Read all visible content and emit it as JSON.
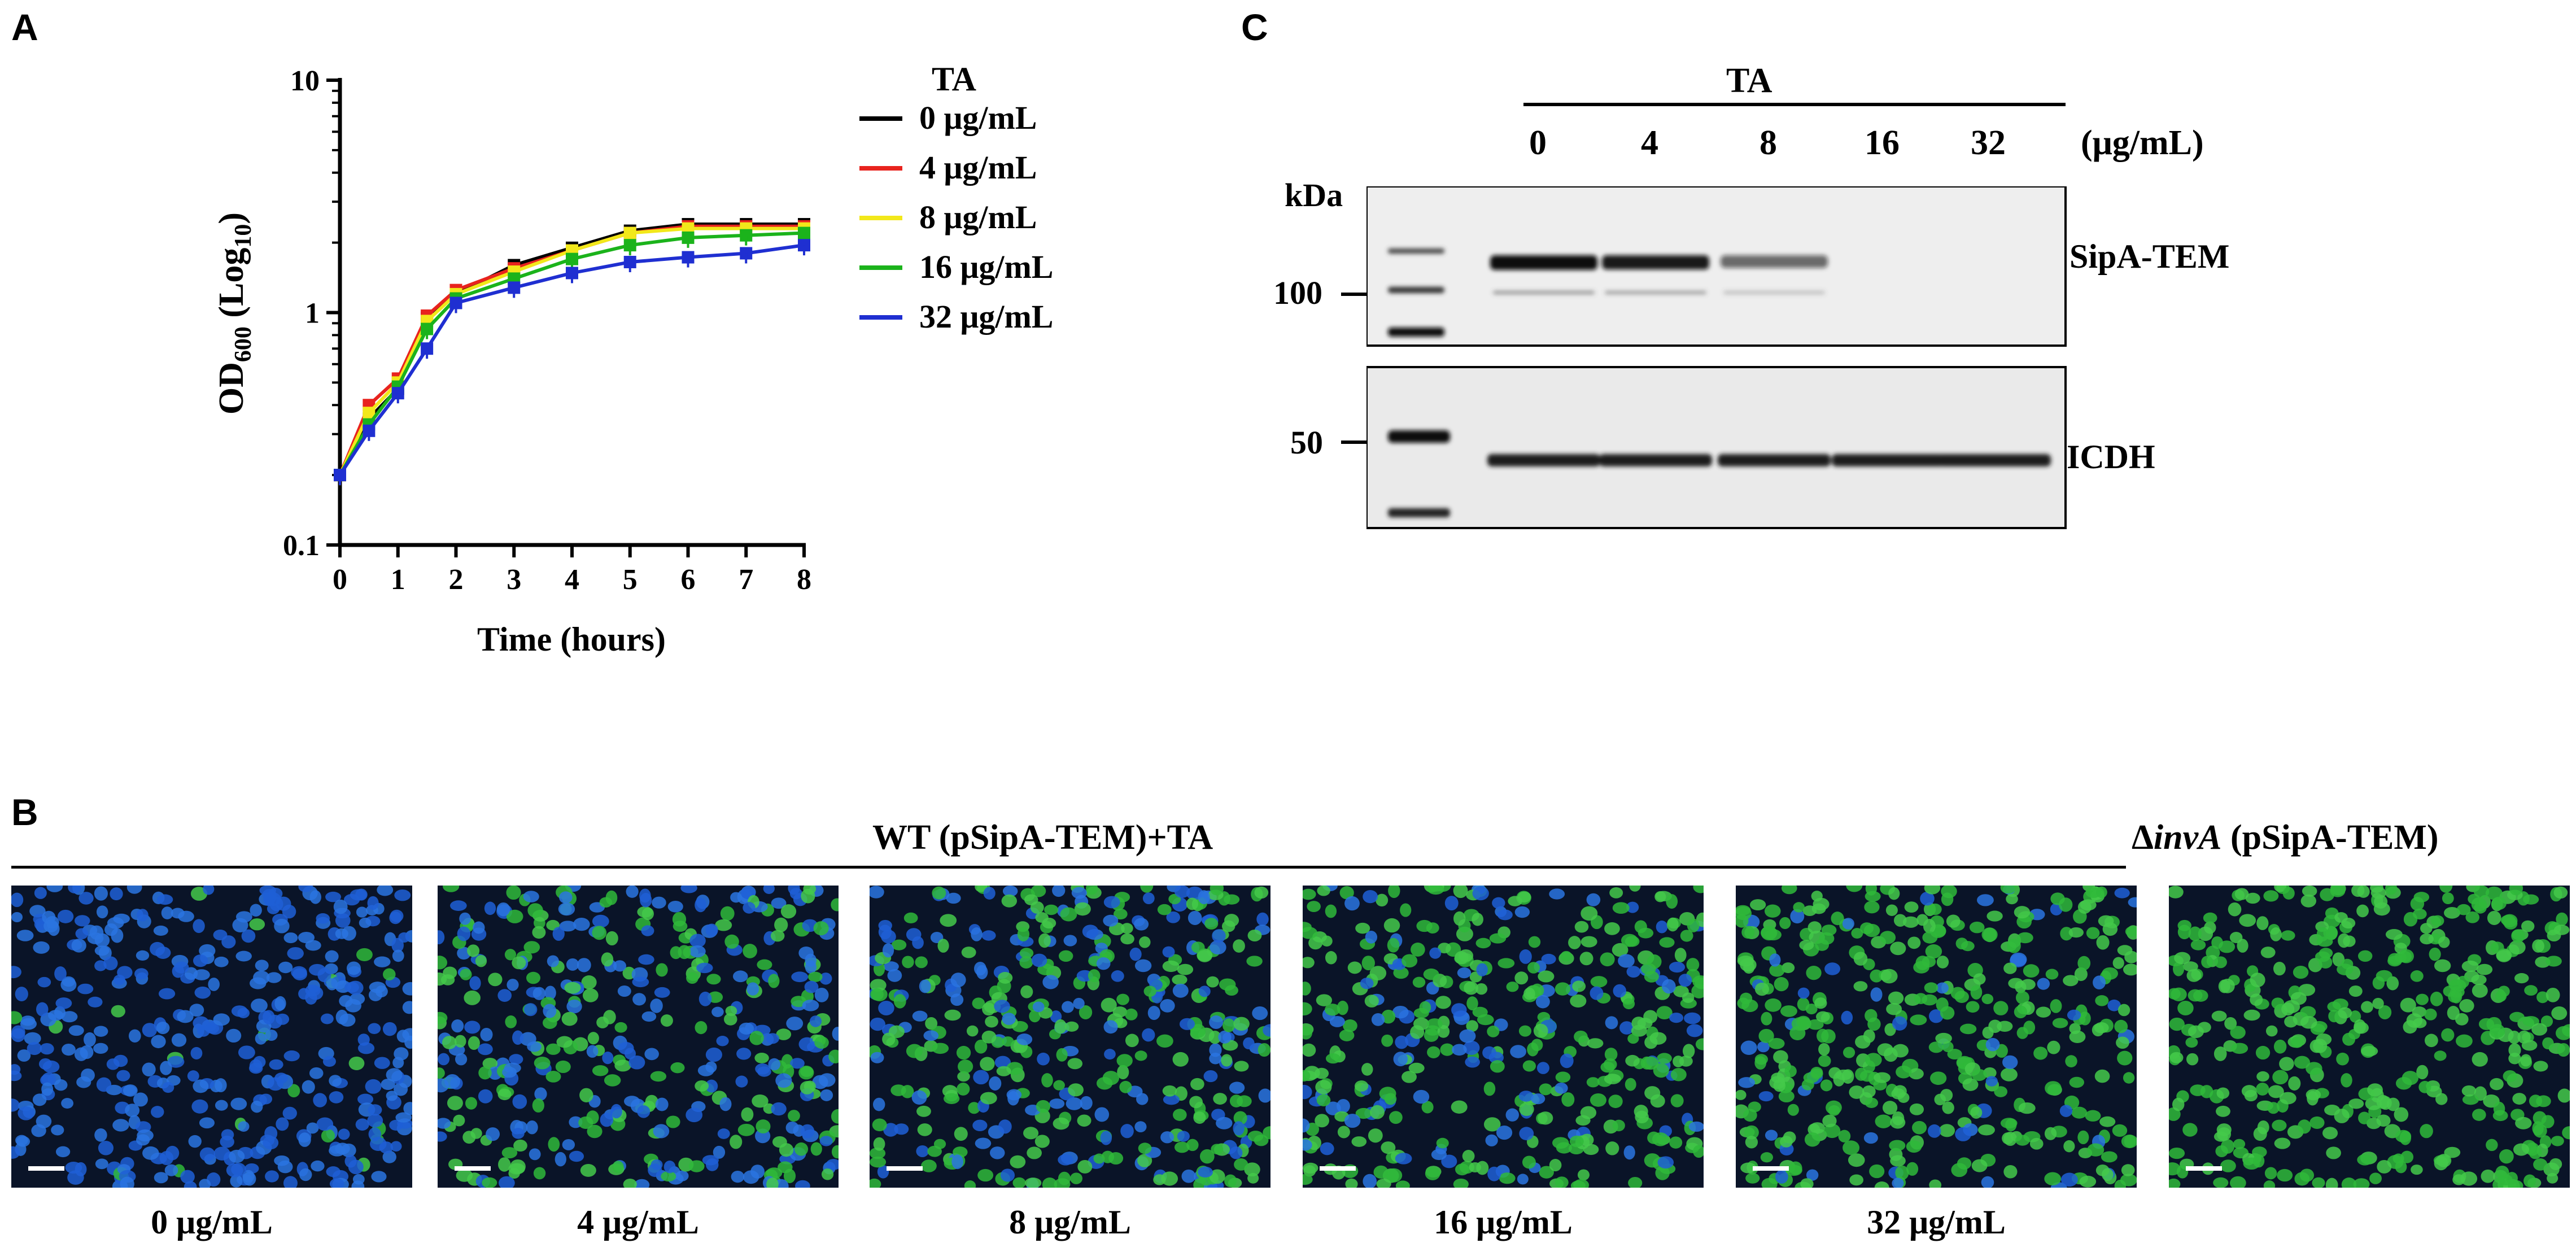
{
  "panels": {
    "a": "A",
    "b": "B",
    "c": "C"
  },
  "chart_data": {
    "type": "line",
    "ylabel_main": "OD",
    "ylabel_sub600": "600",
    "ylabel_paren": " (Log",
    "ylabel_sub10": "10",
    "ylabel_close": ")",
    "xlabel": "Time (hours)",
    "y_scale": "log",
    "ylim": [
      0.1,
      10
    ],
    "y_ticks": [
      "10",
      "1",
      "0.1"
    ],
    "xlim": [
      0,
      8
    ],
    "x_ticks": [
      "0",
      "1",
      "2",
      "3",
      "4",
      "5",
      "6",
      "7",
      "8"
    ],
    "x": [
      0,
      0.5,
      1,
      1.5,
      2,
      3,
      4,
      5,
      6,
      7,
      8
    ],
    "legend_title": "TA",
    "legend_position": "right",
    "series": [
      {
        "name": "0 μg/mL",
        "color": "#000000",
        "values": [
          0.2,
          0.35,
          0.47,
          0.95,
          1.2,
          1.6,
          1.9,
          2.25,
          2.4,
          2.4,
          2.4
        ]
      },
      {
        "name": "4 μg/mL",
        "color": "#e8231e",
        "values": [
          0.2,
          0.4,
          0.52,
          0.97,
          1.25,
          1.55,
          1.85,
          2.2,
          2.35,
          2.35,
          2.35
        ]
      },
      {
        "name": "8 μg/mL",
        "color": "#f2e81a",
        "values": [
          0.2,
          0.37,
          0.5,
          0.92,
          1.2,
          1.5,
          1.85,
          2.2,
          2.3,
          2.3,
          2.3
        ]
      },
      {
        "name": "16 μg/mL",
        "color": "#1bb31b",
        "values": [
          0.2,
          0.33,
          0.48,
          0.85,
          1.15,
          1.4,
          1.7,
          1.95,
          2.1,
          2.15,
          2.2
        ]
      },
      {
        "name": "32 μg/mL",
        "color": "#1f2fd1",
        "values": [
          0.2,
          0.31,
          0.45,
          0.7,
          1.1,
          1.28,
          1.48,
          1.65,
          1.73,
          1.8,
          1.95
        ]
      }
    ]
  },
  "blot": {
    "ta_label": "TA",
    "lanes": [
      "0",
      "4",
      "8",
      "16",
      "32"
    ],
    "unit": "(μg/mL)",
    "kda": "kDa",
    "marker_100": "100",
    "marker_50": "50",
    "band_top": "SipA-TEM",
    "band_bottom": "ICDH",
    "sipa_intensity": [
      1.0,
      0.9,
      0.55,
      0.0,
      0.0
    ]
  },
  "micro": {
    "header": "WT (pSipA-TEM)+TA",
    "invA_delta": "Δ",
    "invA_gene": "invA",
    "invA_rest": " (pSipA-TEM)",
    "captions": [
      "0 μg/mL",
      "4 μg/mL",
      "8 μg/mL",
      "16 μg/mL",
      "32 μg/mL"
    ],
    "green_fraction": [
      0.03,
      0.45,
      0.6,
      0.75,
      0.85,
      1.0
    ]
  }
}
